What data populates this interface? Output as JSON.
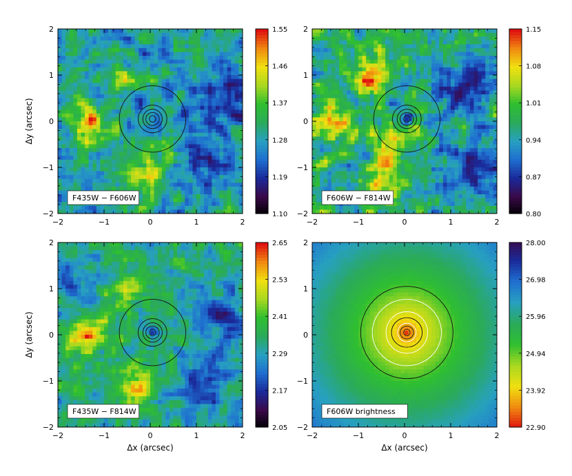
{
  "figure": {
    "kind": "four-panel color maps with colorbars"
  },
  "axis_labels": {
    "x": "Δx (arcsec)",
    "y": "Δy (arcsec)"
  },
  "colors": {
    "colormap": [
      "#000000",
      "#3a0a4a",
      "#1a2a9a",
      "#1f6fd0",
      "#27a0c0",
      "#2aaa5a",
      "#2fbf30",
      "#a8d820",
      "#f0e010",
      "#f08a10",
      "#e01010"
    ],
    "contour": "#111111",
    "contour_white": "#ffffff"
  },
  "chart_data": [
    {
      "type": "heatmap",
      "panel": "top-left",
      "label": "F435W − F606W",
      "xlim": [
        -2,
        2
      ],
      "ylim": [
        -2,
        2
      ],
      "x_ticks": [
        "−2",
        "−1",
        "0",
        "1",
        "2"
      ],
      "y_ticks": [
        "−2",
        "−1",
        "0",
        "1",
        "2"
      ],
      "colorbar": {
        "min": 1.1,
        "max": 1.55,
        "ticks": [
          "1.55",
          "1.46",
          "1.37",
          "1.28",
          "1.19",
          "1.10"
        ],
        "reversed": false
      },
      "contour_radii_arcsec": [
        0.07,
        0.14,
        0.21,
        0.3,
        0.72
      ],
      "contour_center": [
        0.05,
        0.05
      ],
      "show_y_label": true,
      "show_x_label": false
    },
    {
      "type": "heatmap",
      "panel": "top-right",
      "label": "F606W − F814W",
      "xlim": [
        -2,
        2
      ],
      "ylim": [
        -2,
        2
      ],
      "x_ticks": [
        "−2",
        "−1",
        "0",
        "1",
        "2"
      ],
      "y_ticks": [
        "−2",
        "−1",
        "0",
        "1",
        "2"
      ],
      "colorbar": {
        "min": 0.8,
        "max": 1.15,
        "ticks": [
          "1.15",
          "1.08",
          "1.01",
          "0.94",
          "0.87",
          "0.80"
        ],
        "reversed": false
      },
      "contour_radii_arcsec": [
        0.07,
        0.14,
        0.21,
        0.3,
        0.72
      ],
      "contour_center": [
        0.05,
        0.05
      ],
      "show_y_label": false,
      "show_x_label": false
    },
    {
      "type": "heatmap",
      "panel": "bottom-left",
      "label": "F435W − F814W",
      "xlim": [
        -2,
        2
      ],
      "ylim": [
        -2,
        2
      ],
      "x_ticks": [
        "−2",
        "−1",
        "0",
        "1",
        "2"
      ],
      "y_ticks": [
        "−2",
        "−1",
        "0",
        "1",
        "2"
      ],
      "colorbar": {
        "min": 2.05,
        "max": 2.65,
        "ticks": [
          "2.65",
          "2.53",
          "2.41",
          "2.29",
          "2.17",
          "2.05"
        ],
        "reversed": false
      },
      "contour_radii_arcsec": [
        0.07,
        0.14,
        0.21,
        0.3,
        0.72
      ],
      "contour_center": [
        0.05,
        0.05
      ],
      "show_y_label": true,
      "show_x_label": true
    },
    {
      "type": "heatmap",
      "panel": "bottom-right",
      "label": "F606W brightness",
      "xlim": [
        -2,
        2
      ],
      "ylim": [
        -2,
        2
      ],
      "x_ticks": [
        "−2",
        "−1",
        "0",
        "1",
        "2"
      ],
      "y_ticks": [
        "−2",
        "−1",
        "0",
        "1",
        "2"
      ],
      "colorbar": {
        "min": 22.9,
        "max": 28.0,
        "ticks": [
          "28.00",
          "26.98",
          "25.96",
          "24.94",
          "23.92",
          "22.90"
        ],
        "reversed": true
      },
      "contour_radii_arcsec": [
        0.07,
        0.14,
        0.2,
        0.32,
        0.45,
        0.72,
        1.0
      ],
      "contour_center": [
        0.05,
        0.05
      ],
      "show_y_label": false,
      "show_x_label": true
    }
  ]
}
